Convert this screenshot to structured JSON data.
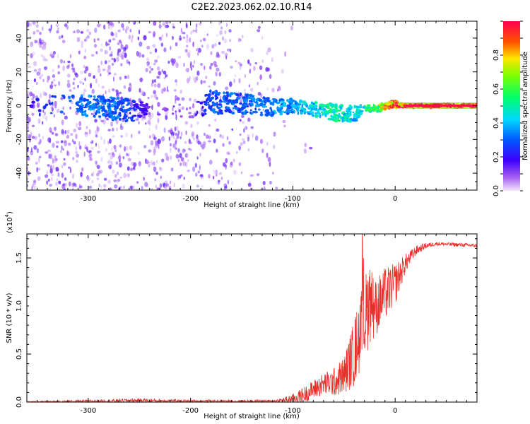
{
  "title": "C2E2.2023.062.02.10.R14",
  "chart_data": [
    {
      "type": "heatmap",
      "title": "C2E2.2023.062.02.10.R14",
      "xlabel": "Height of straight line (km)",
      "ylabel": "Frequency (Hz)",
      "xlim": [
        -360,
        80
      ],
      "ylim": [
        -50,
        50
      ],
      "xticks": [
        -300,
        -200,
        -100,
        0
      ],
      "yticks": [
        -40,
        -20,
        0,
        20,
        40
      ],
      "colorbar": {
        "label": "Normalized spectral amplitude",
        "range": [
          0.0,
          1.0
        ],
        "ticks": [
          0.0,
          0.2,
          0.4,
          0.6,
          0.8
        ],
        "tick_labels": [
          "0.0",
          "0.2",
          "0.4",
          "0.6",
          "0.8"
        ]
      },
      "band": {
        "x": [
          -360,
          -330,
          -300,
          -260,
          -240,
          -200,
          -180,
          -150,
          -120,
          -100,
          -80,
          -60,
          -40,
          -30,
          -20,
          -10,
          0,
          10,
          30,
          60,
          80
        ],
        "center_hz": [
          0,
          0,
          0,
          -3,
          -2,
          -4,
          2,
          1,
          -1,
          0,
          -2,
          -4,
          -5,
          -1,
          -2,
          0,
          1,
          0,
          0,
          0,
          0
        ],
        "halfwidth_hz": [
          5,
          6,
          6,
          7,
          3,
          3,
          7,
          6,
          5,
          4,
          4,
          5,
          5,
          2,
          2,
          2,
          2,
          1,
          1,
          1,
          1
        ],
        "amplitude": [
          0.15,
          0.3,
          0.35,
          0.3,
          0.12,
          0.1,
          0.3,
          0.32,
          0.35,
          0.38,
          0.45,
          0.5,
          0.45,
          0.5,
          0.6,
          0.8,
          0.9,
          0.95,
          0.98,
          0.98,
          0.98
        ]
      },
      "scatter_density": {
        "x": [
          -360,
          -330,
          -300,
          -270,
          -250,
          -230,
          -200,
          -190,
          -170,
          -150,
          -130,
          -110,
          -100
        ],
        "density": [
          0.7,
          0.8,
          0.7,
          0.9,
          0.6,
          0.7,
          0.8,
          0.5,
          0.5,
          0.4,
          0.3,
          0.1,
          0.02
        ]
      },
      "legend": "none",
      "grid": false
    },
    {
      "type": "line",
      "xlabel": "Height of straight line (km)",
      "ylabel": "SNR (10 * v/v)",
      "scale_label": "(x10",
      "scale_exponent": "4",
      "scale_suffix": ")",
      "xlim": [
        -360,
        80
      ],
      "ylim": [
        0.0,
        1.75
      ],
      "xticks": [
        -300,
        -200,
        -100,
        0
      ],
      "yticks": [
        0.0,
        0.5,
        1.0,
        1.5
      ],
      "ytick_labels": [
        "0.0",
        "0.5",
        "1.0",
        "1.5"
      ],
      "color": "#e8302a",
      "series": [
        {
          "x": [
            -360,
            -300,
            -250,
            -200,
            -150,
            -120,
            -110,
            -100,
            -90,
            -80,
            -70,
            -60,
            -50,
            -40,
            -30,
            -25,
            -20,
            -10,
            0,
            10,
            20,
            30,
            40,
            60,
            80
          ],
          "y": [
            0.0,
            0.01,
            0.02,
            0.01,
            0.01,
            0.01,
            0.02,
            0.04,
            0.08,
            0.14,
            0.2,
            0.22,
            0.3,
            0.55,
            0.9,
            1.1,
            1.0,
            1.15,
            1.25,
            1.45,
            1.58,
            1.63,
            1.65,
            1.64,
            1.63
          ],
          "noise": [
            0.01,
            0.015,
            0.02,
            0.015,
            0.015,
            0.015,
            0.03,
            0.05,
            0.08,
            0.1,
            0.12,
            0.15,
            0.2,
            0.35,
            0.45,
            0.45,
            0.3,
            0.28,
            0.22,
            0.1,
            0.05,
            0.03,
            0.02,
            0.02,
            0.02
          ]
        }
      ],
      "legend": "none",
      "grid": false
    }
  ]
}
